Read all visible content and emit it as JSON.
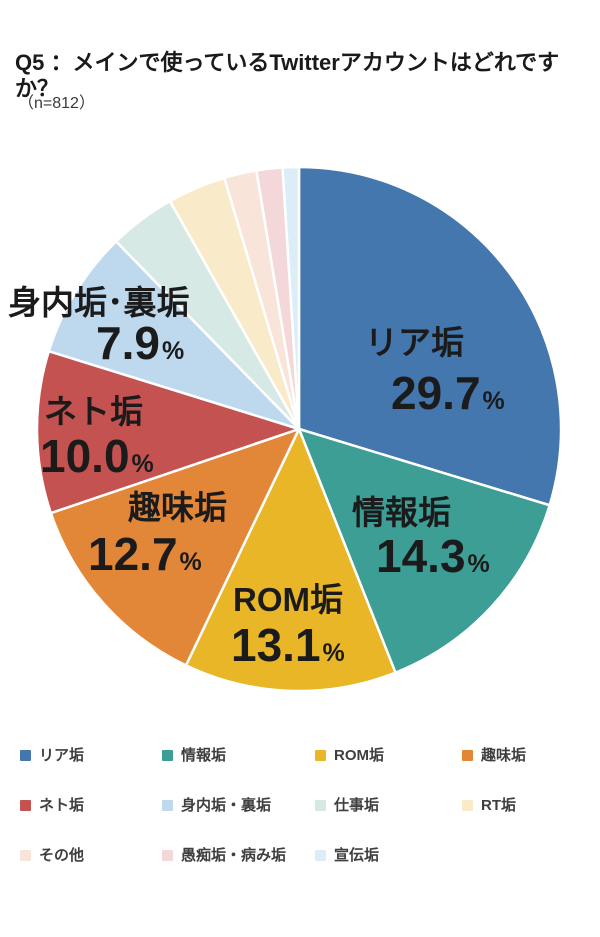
{
  "title": "Q5 ：メインで使っているTwitterアカウントはどれですか？",
  "subtitle": "（n=812）",
  "chart_data": {
    "type": "pie",
    "title": "Q5 ：メインで使っているTwitterアカウントはどれですか？",
    "sample_size_label": "（n=812）",
    "start_position": "top",
    "direction": "clockwise",
    "percent_sign": "%",
    "slice_border_color": "#ffffff",
    "slices": [
      {
        "label": "リア垢",
        "value": 29.7,
        "display": "29.7",
        "color": "#4377ad",
        "labeled": true
      },
      {
        "label": "情報垢",
        "value": 14.3,
        "display": "14.3",
        "color": "#3d9e96",
        "labeled": true
      },
      {
        "label": "ROM垢",
        "value": 13.1,
        "display": "13.1",
        "color": "#e9b627",
        "labeled": true
      },
      {
        "label": "趣味垢",
        "value": 12.7,
        "display": "12.7",
        "color": "#e28638",
        "labeled": true
      },
      {
        "label": "ネト垢",
        "value": 10.0,
        "display": "10.0",
        "color": "#c45250",
        "labeled": true
      },
      {
        "label": "身内垢･裏垢",
        "value": 7.9,
        "display": "7.9",
        "color": "#bed8ee",
        "labeled": true
      },
      {
        "label": "仕事垢",
        "value": 4.1,
        "color": "#d7e9e4",
        "labeled": false,
        "value_estimated": true
      },
      {
        "label": "RT垢",
        "value": 3.6,
        "color": "#f9ebc9",
        "labeled": false,
        "value_estimated": true
      },
      {
        "label": "その他",
        "value": 2.0,
        "color": "#f8e4d8",
        "labeled": false,
        "value_estimated": true
      },
      {
        "label": "愚痴垢・病み垢",
        "value": 1.6,
        "color": "#f3d7d9",
        "labeled": false,
        "value_estimated": true
      },
      {
        "label": "宣伝垢",
        "value": 1.0,
        "color": "#dcedf8",
        "labeled": false,
        "value_estimated": true
      }
    ],
    "legend": [
      {
        "label": "リア垢",
        "color": "#4377ad"
      },
      {
        "label": "情報垢",
        "color": "#3d9e96"
      },
      {
        "label": "ROM垢",
        "color": "#e9b627"
      },
      {
        "label": "趣味垢",
        "color": "#e28638"
      },
      {
        "label": "ネト垢",
        "color": "#c45250"
      },
      {
        "label": "身内垢・裏垢",
        "color": "#bed8ee"
      },
      {
        "label": "仕事垢",
        "color": "#d7e9e4"
      },
      {
        "label": "RT垢",
        "color": "#f9ebc9"
      },
      {
        "label": "その他",
        "color": "#f8e4d8"
      },
      {
        "label": "愚痴垢・病み垢",
        "color": "#f3d7d9"
      },
      {
        "label": "宣伝垢",
        "color": "#dcedf8"
      }
    ]
  }
}
